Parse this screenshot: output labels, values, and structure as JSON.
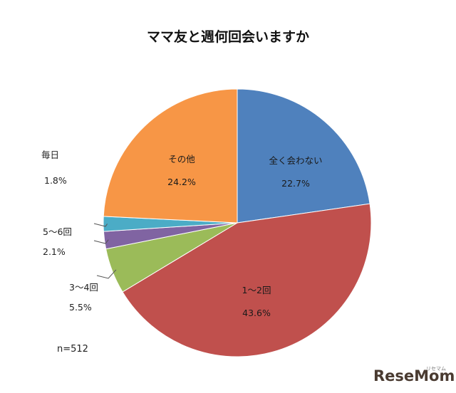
{
  "chart_data": {
    "type": "pie",
    "title": "ママ友と週何回会いますか",
    "sample_note": "n=512",
    "slices": [
      {
        "label": "全く会わない",
        "value": 22.7,
        "value_text": "22.7%",
        "color": "#4f81bd"
      },
      {
        "label": "1～2回",
        "value": 43.6,
        "value_text": "43.6%",
        "color": "#c0504d"
      },
      {
        "label": "3～4回",
        "value": 5.5,
        "value_text": "5.5%",
        "color": "#9bbb59"
      },
      {
        "label": "5～6回",
        "value": 2.1,
        "value_text": "2.1%",
        "color": "#8064a2"
      },
      {
        "label": "毎日",
        "value": 1.8,
        "value_text": "1.8%",
        "color": "#4bacc6"
      },
      {
        "label": "その他",
        "value": 24.2,
        "value_text": "24.2%",
        "color": "#f79646"
      }
    ],
    "start": "12 o'clock",
    "direction": "clockwise",
    "legend": "none"
  },
  "watermark": {
    "text": "ReseMom",
    "sub": "リセマム",
    "color": "#4a3b31"
  }
}
